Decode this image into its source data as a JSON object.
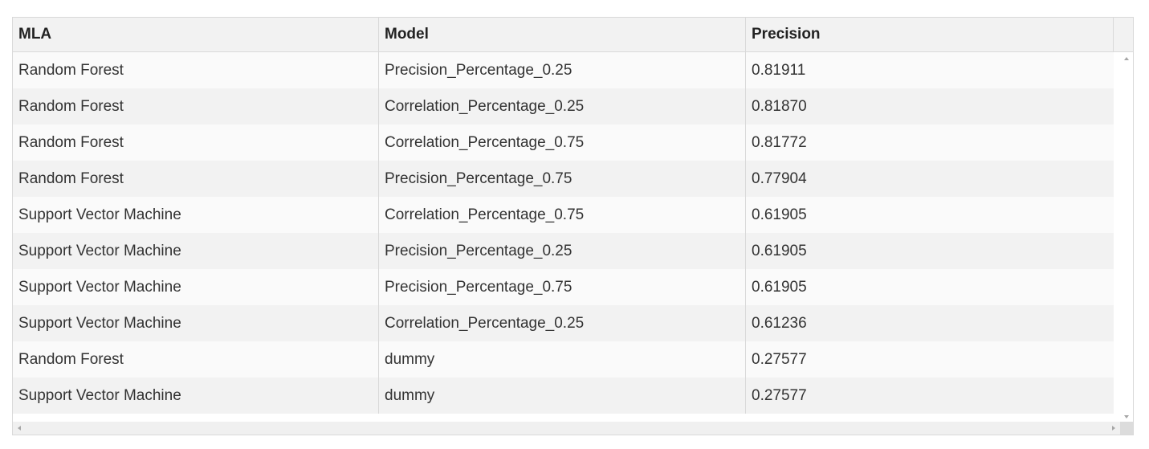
{
  "table": {
    "columns": [
      "MLA",
      "Model",
      "Precision"
    ],
    "rows": [
      [
        "Random Forest",
        "Precision_Percentage_0.25",
        "0.81911"
      ],
      [
        "Random Forest",
        "Correlation_Percentage_0.25",
        "0.81870"
      ],
      [
        "Random Forest",
        "Correlation_Percentage_0.75",
        "0.81772"
      ],
      [
        "Random Forest",
        "Precision_Percentage_0.75",
        "0.77904"
      ],
      [
        "Support Vector Machine",
        "Correlation_Percentage_0.75",
        "0.61905"
      ],
      [
        "Support Vector Machine",
        "Precision_Percentage_0.25",
        "0.61905"
      ],
      [
        "Support Vector Machine",
        "Precision_Percentage_0.75",
        "0.61905"
      ],
      [
        "Support Vector Machine",
        "Correlation_Percentage_0.25",
        "0.61236"
      ],
      [
        "Random Forest",
        "dummy",
        "0.27577"
      ],
      [
        "Support Vector Machine",
        "dummy",
        "0.27577"
      ]
    ]
  },
  "colors": {
    "header_bg": "#f2f2f2",
    "row_odd_bg": "#fafafa",
    "row_even_bg": "#f2f2f2",
    "border": "#d9d9d9"
  },
  "icons": {
    "scroll_up": "scroll-up-arrow-icon",
    "scroll_down": "scroll-down-arrow-icon",
    "scroll_left": "scroll-left-arrow-icon",
    "scroll_right": "scroll-right-arrow-icon"
  }
}
